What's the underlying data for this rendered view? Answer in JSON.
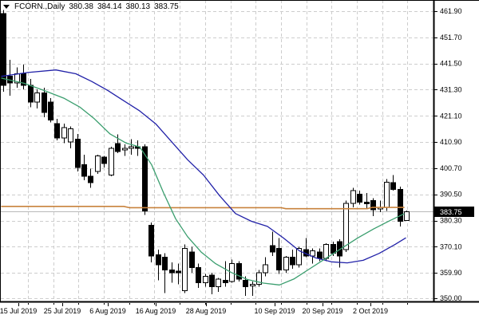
{
  "window": {
    "symbol": "FCORN.,Daily",
    "open": "380.38",
    "high": "384.14",
    "low": "380.13",
    "close": "383.75"
  },
  "price_badge": "383.75",
  "colors": {
    "background": "#ffffff",
    "grid": "#cdcdcd",
    "border": "#000000",
    "bull_fill": "#ffffff",
    "bear_fill": "#000000",
    "wick": "#000000",
    "ma_fast_green": "#3a9e6e",
    "ma_slow_blue": "#2121a8",
    "ma_long_orange": "#c8823c",
    "current_price_line": "#b9b9b9",
    "badge_bg": "#000000",
    "badge_text": "#ffffff"
  },
  "chart_data": {
    "type": "candlestick",
    "title": "FCORN.,Daily",
    "last_ohlc": {
      "open": 380.38,
      "high": 384.14,
      "low": 380.13,
      "close": 383.75
    },
    "y_axis": {
      "side": "right",
      "ticks": [
        "461.90",
        "451.70",
        "441.50",
        "431.30",
        "421.10",
        "410.90",
        "400.70",
        "390.50",
        "380.30",
        "370.10",
        "359.90",
        "350.00"
      ],
      "range": [
        350.0,
        461.9
      ],
      "current_price": 383.75
    },
    "x_axis": {
      "labels": [
        "15 Jul 2019",
        "25 Jul 2019",
        "6 Aug 2019",
        "16 Aug 2019",
        "28 Aug 2019",
        "10 Sep 2019",
        "20 Sep 2019",
        "2 Oct 2019"
      ]
    },
    "grid": true,
    "candles": [
      [
        461,
        462.3,
        430.5,
        433
      ],
      [
        436.5,
        443,
        429,
        434
      ],
      [
        434,
        440,
        432,
        437.5
      ],
      [
        437.5,
        441,
        431.5,
        433
      ],
      [
        433,
        435.5,
        424.5,
        426.5
      ],
      [
        426.5,
        431.5,
        424,
        430
      ],
      [
        430,
        432,
        420.5,
        422.5
      ],
      [
        426.5,
        428,
        418.5,
        419.5
      ],
      [
        418,
        420,
        411.5,
        412.5
      ],
      [
        412.5,
        418,
        410.5,
        416.5
      ],
      [
        411,
        417,
        408.5,
        416
      ],
      [
        412,
        414,
        399.5,
        401
      ],
      [
        402,
        406,
        396,
        397.5
      ],
      [
        397.5,
        400.5,
        393,
        395
      ],
      [
        399.5,
        406,
        398.5,
        405.5
      ],
      [
        405,
        405.5,
        401,
        402.5
      ],
      [
        398,
        409,
        397.5,
        408.5
      ],
      [
        410.3,
        413.9,
        406.5,
        407.2
      ],
      [
        408,
        410,
        405.5,
        408.5
      ],
      [
        408.5,
        412,
        406,
        409
      ],
      [
        409,
        411.5,
        405.5,
        408.5
      ],
      [
        409,
        410,
        382.5,
        384
      ],
      [
        378.5,
        379.5,
        364,
        366.5
      ],
      [
        367,
        369,
        357,
        363
      ],
      [
        366,
        367.5,
        352,
        361
      ],
      [
        361,
        364,
        356,
        360
      ],
      [
        360.5,
        363.5,
        355.5,
        360
      ],
      [
        353,
        371,
        352,
        369.5
      ],
      [
        368,
        370,
        360,
        362
      ],
      [
        362,
        363.5,
        354,
        356
      ],
      [
        356,
        359.5,
        354.5,
        358.5
      ],
      [
        359,
        360,
        351.5,
        354.5
      ],
      [
        354.5,
        358,
        352.5,
        357.5
      ],
      [
        357,
        364.5,
        354.5,
        356
      ],
      [
        356.5,
        365,
        356,
        363.5
      ],
      [
        363.5,
        364.5,
        356.5,
        357.5
      ],
      [
        357,
        358.5,
        350.9,
        354.5
      ],
      [
        355,
        356.5,
        350.9,
        355.5
      ],
      [
        355.5,
        361,
        354.5,
        360
      ],
      [
        360,
        366,
        358.5,
        363
      ],
      [
        370.5,
        376,
        366.5,
        368
      ],
      [
        369.5,
        373.5,
        359.5,
        361
      ],
      [
        361,
        366.5,
        360,
        366
      ],
      [
        366,
        369,
        361.5,
        363
      ],
      [
        363,
        370,
        362,
        369.5
      ],
      [
        369,
        373.5,
        366,
        366.5
      ],
      [
        366.5,
        369.5,
        363.5,
        368.5
      ],
      [
        368,
        369.5,
        364.5,
        365.5
      ],
      [
        365.5,
        371.5,
        364.5,
        371
      ],
      [
        371,
        372,
        366.5,
        367.5
      ],
      [
        372,
        373,
        362,
        366.5
      ],
      [
        369,
        388,
        368,
        387
      ],
      [
        387,
        393,
        385.5,
        392
      ],
      [
        390.5,
        392,
        386.5,
        387.5
      ],
      [
        387.5,
        391,
        385,
        387
      ],
      [
        388,
        389,
        382,
        384.5
      ],
      [
        385.5,
        388,
        383.5,
        385.5
      ],
      [
        385.5,
        396.5,
        384,
        395.3
      ],
      [
        395,
        398,
        392,
        392.5
      ],
      [
        392.5,
        393.5,
        378,
        380
      ],
      [
        380.38,
        384.14,
        380.13,
        383.75
      ]
    ],
    "overlays": [
      {
        "name": "ma-long-orange",
        "color_key": "ma_long_orange",
        "width": 1.6,
        "points": [
          [
            2,
            385.8
          ],
          [
            155,
            385.8
          ],
          [
            162,
            385.3
          ],
          [
            352,
            385.3
          ],
          [
            358,
            384.9
          ],
          [
            460,
            384.9
          ],
          [
            466,
            385.4
          ],
          [
            506,
            385.4
          ]
        ]
      },
      {
        "name": "ma-slow-blue",
        "color_key": "ma_slow_blue",
        "width": 1.3,
        "points": [
          [
            2,
            436.5
          ],
          [
            35,
            438
          ],
          [
            70,
            439
          ],
          [
            95,
            437.5
          ],
          [
            115,
            434.5
          ],
          [
            135,
            431
          ],
          [
            155,
            427
          ],
          [
            175,
            423
          ],
          [
            195,
            418
          ],
          [
            215,
            411
          ],
          [
            235,
            404
          ],
          [
            255,
            398
          ],
          [
            275,
            390
          ],
          [
            295,
            383
          ],
          [
            315,
            380
          ],
          [
            335,
            378
          ],
          [
            355,
            373.5
          ],
          [
            375,
            368.5
          ],
          [
            395,
            365.8
          ],
          [
            415,
            364.2
          ],
          [
            435,
            363.8
          ],
          [
            455,
            364.8
          ],
          [
            475,
            367.5
          ],
          [
            495,
            371
          ],
          [
            508,
            373.5
          ]
        ]
      },
      {
        "name": "ma-fast-green",
        "color_key": "ma_fast_green",
        "width": 1.3,
        "points": [
          [
            2,
            435.8
          ],
          [
            30,
            433.8
          ],
          [
            55,
            431
          ],
          [
            80,
            428
          ],
          [
            100,
            424.5
          ],
          [
            118,
            420
          ],
          [
            138,
            414
          ],
          [
            158,
            410.5
          ],
          [
            175,
            409
          ],
          [
            190,
            402
          ],
          [
            205,
            391
          ],
          [
            220,
            381
          ],
          [
            235,
            374
          ],
          [
            252,
            368
          ],
          [
            270,
            363.5
          ],
          [
            290,
            360
          ],
          [
            310,
            357.3
          ],
          [
            330,
            355.9
          ],
          [
            350,
            355.2
          ],
          [
            368,
            357.5
          ],
          [
            388,
            361.5
          ],
          [
            408,
            365.5
          ],
          [
            428,
            369.5
          ],
          [
            448,
            373.5
          ],
          [
            468,
            377
          ],
          [
            488,
            380.2
          ],
          [
            506,
            382.9
          ]
        ]
      }
    ]
  }
}
